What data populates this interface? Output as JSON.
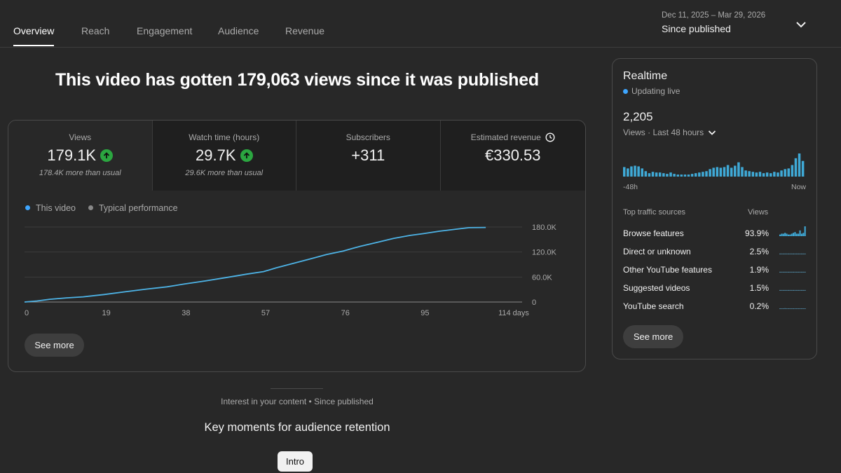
{
  "tabs": [
    "Overview",
    "Reach",
    "Engagement",
    "Audience",
    "Revenue"
  ],
  "date_range": {
    "range": "Dec 11, 2025 – Mar 29, 2026",
    "label": "Since published"
  },
  "headline": "This video has gotten 179,063 views since it was published",
  "metrics": [
    {
      "label": "Views",
      "value": "179.1K",
      "sub": "178.4K more than usual",
      "trend": "up"
    },
    {
      "label": "Watch time (hours)",
      "value": "29.7K",
      "sub": "29.6K more than usual",
      "trend": "up"
    },
    {
      "label": "Subscribers",
      "value": "+311",
      "sub": ""
    },
    {
      "label": "Estimated revenue",
      "value": "€330.53",
      "sub": ""
    }
  ],
  "legend": {
    "this_video": "This video",
    "typical": "Typical performance"
  },
  "colors": {
    "accent": "#3ea6ff",
    "line": "#4db3e6",
    "up": "#2ba640",
    "bar": "#3fa9d6"
  },
  "chart_data": {
    "type": "line",
    "xlabel": "days",
    "x_ticks": [
      "0",
      "19",
      "38",
      "57",
      "76",
      "95",
      "114 days"
    ],
    "y_ticks": [
      "180.0K",
      "120.0K",
      "60.0K",
      "0"
    ],
    "xlim": [
      0,
      118
    ],
    "ylim": [
      0,
      180000
    ],
    "series": [
      {
        "name": "This video",
        "x": [
          0,
          3,
          6,
          10,
          14,
          19,
          24,
          29,
          34,
          38,
          43,
          48,
          53,
          57,
          60,
          64,
          68,
          72,
          76,
          80,
          84,
          88,
          92,
          95,
          99,
          103,
          106,
          110
        ],
        "y": [
          0,
          2500,
          6500,
          10000,
          12500,
          18000,
          24500,
          31000,
          36500,
          43000,
          50500,
          58500,
          67000,
          73000,
          82000,
          92500,
          103000,
          114000,
          122500,
          133500,
          143000,
          152500,
          160000,
          164000,
          170000,
          175000,
          178500,
          179063
        ]
      }
    ]
  },
  "see_more": "See more",
  "realtime": {
    "title": "Realtime",
    "live": "Updating live",
    "count": "2,205",
    "period": "Views · Last 48 hours",
    "axis_left": "-48h",
    "axis_right": "Now",
    "bars": [
      14,
      12,
      15,
      16,
      15,
      12,
      8,
      5,
      7,
      6,
      6,
      5,
      4,
      6,
      4,
      3,
      3,
      3,
      3,
      4,
      5,
      6,
      7,
      8,
      11,
      13,
      14,
      13,
      14,
      17,
      13,
      16,
      21,
      14,
      9,
      8,
      7,
      6,
      7,
      5,
      6,
      5,
      7,
      6,
      9,
      11,
      12,
      17,
      27,
      34,
      23
    ]
  },
  "traffic": {
    "title": "Top traffic sources",
    "col": "Views",
    "rows": [
      {
        "name": "Browse features",
        "pct": "93.9%",
        "spark": [
          2,
          3,
          3,
          4,
          3,
          2,
          2,
          3,
          4,
          5,
          3,
          3,
          7,
          3,
          4,
          12
        ]
      },
      {
        "name": "Direct or unknown",
        "pct": "2.5%",
        "spark": [
          1,
          1,
          1,
          1,
          1,
          1,
          1,
          1,
          1,
          1,
          1,
          1,
          1,
          1,
          1,
          1
        ]
      },
      {
        "name": "Other YouTube features",
        "pct": "1.9%",
        "spark": [
          1,
          1,
          1,
          1,
          1,
          1,
          1,
          1,
          1,
          1,
          1,
          1,
          1,
          1,
          1,
          1
        ]
      },
      {
        "name": "Suggested videos",
        "pct": "1.5%",
        "spark": [
          1,
          1,
          1,
          1,
          1,
          1,
          1,
          1,
          1,
          1,
          1,
          1,
          1,
          1,
          1,
          1
        ]
      },
      {
        "name": "YouTube search",
        "pct": "0.2%",
        "spark": [
          0,
          0,
          0,
          1,
          0,
          0,
          0,
          0,
          0,
          0,
          0,
          0,
          0,
          0,
          0,
          0
        ]
      }
    ]
  },
  "interest": "Interest in your content • Since published",
  "key_moments": "Key moments for audience retention",
  "intro": "Intro"
}
